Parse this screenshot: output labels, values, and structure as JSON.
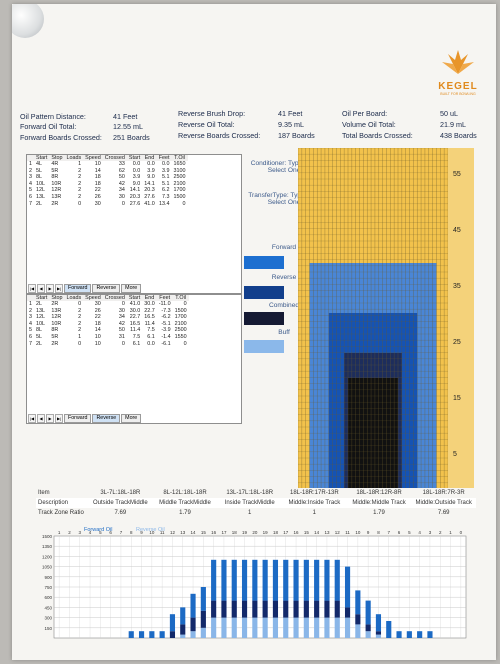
{
  "logo": {
    "name": "KEGEL",
    "tagline": "BUILT FOR BOWLING"
  },
  "summary": {
    "pattern_distance": {
      "label": "Oil Pattern Distance:",
      "value": "41 Feet"
    },
    "forward_oil_total": {
      "label": "Forward Oil Total:",
      "value": "12.55 mL"
    },
    "forward_boards_crossed": {
      "label": "Forward Boards Crossed:",
      "value": "251 Boards"
    },
    "reverse_brush_drop": {
      "label": "Reverse Brush Drop:",
      "value": "41 Feet"
    },
    "reverse_oil_total": {
      "label": "Reverse Oil Total:",
      "value": "9.35 mL"
    },
    "reverse_boards_crossed": {
      "label": "Reverse Boards Crossed:",
      "value": "187 Boards"
    },
    "oil_per_board": {
      "label": "Oil Per Board:",
      "value": "50 uL"
    },
    "volume_oil_total": {
      "label": "Volume Oil Total:",
      "value": "21.9 mL"
    },
    "total_boards_crossed": {
      "label": "Total Boards Crossed:",
      "value": "438 Boards"
    }
  },
  "steps_columns": [
    "",
    "Start",
    "Stop",
    "Loads",
    "Speed",
    "Crossed",
    "Start",
    "End",
    "Feet",
    "T.Oil"
  ],
  "forward_steps": [
    [
      "1",
      "4L",
      "4R",
      "1",
      "10",
      "33",
      "0.0",
      "0.0",
      "0.0",
      "1650"
    ],
    [
      "2",
      "5L",
      "5R",
      "2",
      "14",
      "62",
      "0.0",
      "3.9",
      "3.9",
      "3100"
    ],
    [
      "3",
      "8L",
      "8R",
      "2",
      "18",
      "50",
      "3.9",
      "9.0",
      "5.1",
      "2500"
    ],
    [
      "4",
      "10L",
      "10R",
      "2",
      "18",
      "42",
      "9.0",
      "14.1",
      "5.1",
      "2100"
    ],
    [
      "5",
      "12L",
      "12R",
      "2",
      "22",
      "34",
      "14.1",
      "20.3",
      "6.2",
      "1700"
    ],
    [
      "6",
      "13L",
      "13R",
      "2",
      "26",
      "30",
      "20.3",
      "27.6",
      "7.3",
      "1500"
    ],
    [
      "7",
      "2L",
      "2R",
      "0",
      "30",
      "0",
      "27.6",
      "41.0",
      "13.4",
      "0"
    ]
  ],
  "reverse_steps": [
    [
      "1",
      "2L",
      "2R",
      "0",
      "30",
      "0",
      "41.0",
      "30.0",
      "-11.0",
      "0"
    ],
    [
      "2",
      "13L",
      "13R",
      "2",
      "26",
      "30",
      "30.0",
      "22.7",
      "-7.3",
      "1500"
    ],
    [
      "3",
      "12L",
      "12R",
      "2",
      "22",
      "34",
      "22.7",
      "16.5",
      "-6.2",
      "1700"
    ],
    [
      "4",
      "10L",
      "10R",
      "2",
      "18",
      "42",
      "16.5",
      "11.4",
      "-5.1",
      "2100"
    ],
    [
      "5",
      "8L",
      "8R",
      "2",
      "14",
      "50",
      "11.4",
      "7.5",
      "-3.9",
      "2500"
    ],
    [
      "6",
      "5L",
      "5R",
      "1",
      "10",
      "31",
      "7.5",
      "6.1",
      "-1.4",
      "1550"
    ],
    [
      "7",
      "2L",
      "2R",
      "0",
      "10",
      "0",
      "6.1",
      "0.0",
      "-6.1",
      "0"
    ]
  ],
  "tabs": [
    "Forward",
    "Reverse",
    "More"
  ],
  "side": {
    "conditioner": "Conditioner: Type In or Select One",
    "transfer": "TransferType: Type In or Select One"
  },
  "legend": [
    {
      "label": "Forward",
      "color": "#1d6fd0"
    },
    {
      "label": "Reverse",
      "color": "#123f8c"
    },
    {
      "label": "Combined",
      "color": "#151a33"
    },
    {
      "label": "Buff",
      "color": "#8bb8ea"
    }
  ],
  "lane_graph": {
    "distance_labels": [
      "55",
      "45",
      "35",
      "25",
      "15",
      "5"
    ],
    "colors": {
      "dry": "#f2c24c",
      "light": "#4a86d6",
      "medium": "#1553b4",
      "dense": "#111111"
    }
  },
  "ratio": {
    "item_label": "Item",
    "description_label": "Description",
    "ratio_label": "Track Zone Ratio",
    "items": [
      "3L-7L:18L-18R",
      "8L-12L:18L-18R",
      "13L-17L:18L-18R",
      "18L-18R:17R-13R",
      "18L-18R:12R-8R",
      "18L-18R:7R-3R"
    ],
    "descriptions": [
      "Outside TrackMiddle",
      "Middle TrackMiddle",
      "Inside TrackMiddle",
      "Middle:Inside Track",
      "Middle:Middle Track",
      "Middle:Outside Track"
    ],
    "values": [
      "7.69",
      "1.79",
      "1",
      "1",
      "1.79",
      "7.69"
    ]
  },
  "chart_data": {
    "type": "bar",
    "legend": [
      "Forward Oil",
      "Reverse Oil"
    ],
    "yticks": [
      150,
      300,
      450,
      600,
      750,
      900,
      1050,
      1200,
      1350,
      1500
    ],
    "ylim": [
      0,
      1500
    ],
    "categories": [
      "1",
      "2",
      "3",
      "4",
      "5",
      "6",
      "7",
      "8",
      "9",
      "10",
      "11",
      "12",
      "13",
      "14",
      "15",
      "16",
      "17",
      "18",
      "19",
      "20",
      "19",
      "18",
      "17",
      "16",
      "15",
      "14",
      "13",
      "12",
      "11",
      "10",
      "9",
      "8",
      "7",
      "6",
      "5",
      "4",
      "3",
      "2",
      "1",
      "0"
    ],
    "series": [
      {
        "name": "Forward Oil",
        "color": "#1c6ac4",
        "values": [
          0,
          0,
          0,
          0,
          0,
          0,
          0,
          100,
          100,
          100,
          100,
          250,
          250,
          350,
          350,
          600,
          600,
          600,
          600,
          600,
          600,
          600,
          600,
          600,
          600,
          600,
          600,
          600,
          600,
          350,
          350,
          250,
          250,
          100,
          100,
          100,
          100,
          0,
          0,
          0
        ]
      },
      {
        "name": "Reverse Oil",
        "color": "#8ab6e8",
        "values": [
          0,
          0,
          0,
          0,
          0,
          0,
          0,
          0,
          0,
          0,
          0,
          0,
          50,
          100,
          150,
          300,
          300,
          300,
          300,
          300,
          300,
          300,
          300,
          300,
          300,
          300,
          300,
          300,
          300,
          200,
          100,
          50,
          0,
          0,
          0,
          0,
          0,
          0,
          0,
          0
        ]
      },
      {
        "name": "Combined",
        "color": "#13296a",
        "values": [
          0,
          0,
          0,
          0,
          0,
          0,
          0,
          0,
          0,
          0,
          0,
          100,
          150,
          200,
          250,
          250,
          250,
          250,
          250,
          250,
          250,
          250,
          250,
          250,
          250,
          250,
          250,
          250,
          150,
          150,
          100,
          50,
          0,
          0,
          0,
          0,
          0,
          0,
          0,
          0
        ]
      }
    ],
    "title": "",
    "xlabel": "",
    "ylabel": ""
  }
}
